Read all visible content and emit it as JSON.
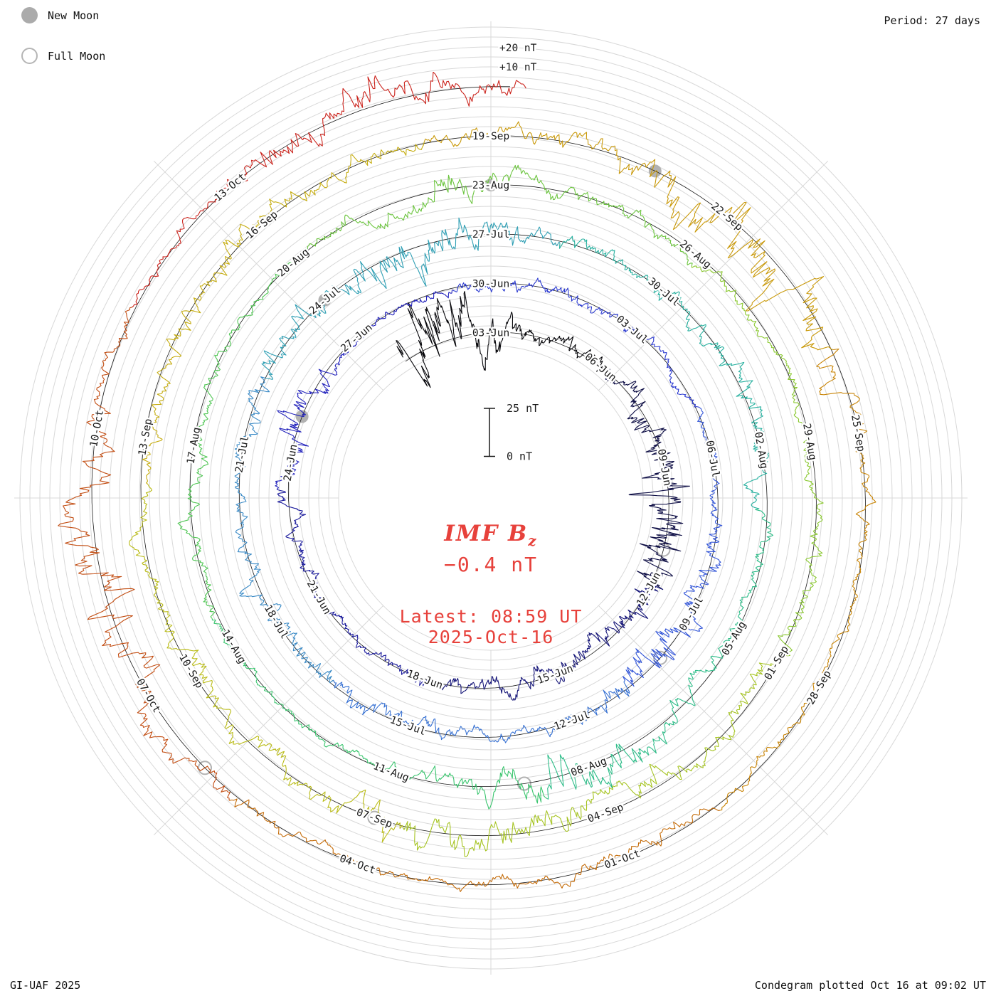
{
  "header": {
    "period": "Period: 27 days"
  },
  "legend": {
    "new_moon": "New Moon",
    "full_moon": "Full Moon"
  },
  "footer": {
    "left": "GI-UAF 2025",
    "right": "Condegram plotted Oct 16 at 09:02 UT"
  },
  "center": {
    "title_main": "IMF B",
    "title_sub": "z",
    "value": "−0.4 nT",
    "latest_time": "Latest: 08:59 UT",
    "latest_date": "2025-Oct-16",
    "accent_color": "#e7413b"
  },
  "chart_data": {
    "type": "spiral-line-condegram",
    "series_label": "IMF Bz (nT)",
    "period_days": 27,
    "day_zero": "2025-05-31",
    "latest": {
      "value_nT": -0.4,
      "time": "08:59 UT",
      "date": "2025-Oct-16"
    },
    "scale": {
      "scalebar_nT": 25,
      "scalebar_top_label": "25 nT",
      "scalebar_zero_label": "0 nT",
      "outer_labels": [
        "+20 nT",
        "+10 nT"
      ],
      "gridline_step_nT": 5
    },
    "date_labels": [
      {
        "label": "03-Jun",
        "day": 3
      },
      {
        "label": "06-Jun",
        "day": 6
      },
      {
        "label": "09-Jun",
        "day": 9
      },
      {
        "label": "12-Jun",
        "day": 12
      },
      {
        "label": "15-Jun",
        "day": 15
      },
      {
        "label": "18-Jun",
        "day": 18
      },
      {
        "label": "21-Jun",
        "day": 21
      },
      {
        "label": "24-Jun",
        "day": 24
      },
      {
        "label": "27-Jun",
        "day": 27
      },
      {
        "label": "30-Jun",
        "day": 30
      },
      {
        "label": "03-Jul",
        "day": 33
      },
      {
        "label": "06-Jul",
        "day": 36
      },
      {
        "label": "09-Jul",
        "day": 39
      },
      {
        "label": "12-Jul",
        "day": 42
      },
      {
        "label": "15-Jul",
        "day": 45
      },
      {
        "label": "18-Jul",
        "day": 48
      },
      {
        "label": "21-Jul",
        "day": 51
      },
      {
        "label": "24-Jul",
        "day": 54
      },
      {
        "label": "27-Jul",
        "day": 57
      },
      {
        "label": "30-Jul",
        "day": 60
      },
      {
        "label": "02-Aug",
        "day": 63
      },
      {
        "label": "05-Aug",
        "day": 66
      },
      {
        "label": "08-Aug",
        "day": 69
      },
      {
        "label": "11-Aug",
        "day": 72
      },
      {
        "label": "14-Aug",
        "day": 75
      },
      {
        "label": "17-Aug",
        "day": 78
      },
      {
        "label": "20-Aug",
        "day": 81
      },
      {
        "label": "23-Aug",
        "day": 84
      },
      {
        "label": "26-Aug",
        "day": 87
      },
      {
        "label": "29-Aug",
        "day": 90
      },
      {
        "label": "01-Sep",
        "day": 93
      },
      {
        "label": "04-Sep",
        "day": 96
      },
      {
        "label": "07-Sep",
        "day": 99
      },
      {
        "label": "10-Sep",
        "day": 102
      },
      {
        "label": "13-Sep",
        "day": 105
      },
      {
        "label": "16-Sep",
        "day": 108
      },
      {
        "label": "19-Sep",
        "day": 111
      },
      {
        "label": "22-Sep",
        "day": 114
      },
      {
        "label": "25-Sep",
        "day": 117
      },
      {
        "label": "28-Sep",
        "day": 120
      },
      {
        "label": "01-Oct",
        "day": 123
      },
      {
        "label": "04-Oct",
        "day": 126
      },
      {
        "label": "07-Oct",
        "day": 129
      },
      {
        "label": "10-Oct",
        "day": 132
      },
      {
        "label": "13-Oct",
        "day": 135
      }
    ],
    "moons": {
      "new_moons": [
        {
          "date": "25-Jun",
          "day": 25
        },
        {
          "date": "24-Jul",
          "day": 54
        },
        {
          "date": "23-Aug",
          "day": 84
        },
        {
          "date": "21-Sep",
          "day": 113
        }
      ],
      "full_moons": [
        {
          "date": "11-Jun",
          "day": 11
        },
        {
          "date": "10-Jul",
          "day": 40
        },
        {
          "date": "09-Aug",
          "day": 70
        },
        {
          "date": "07-Sep",
          "day": 99
        },
        {
          "date": "06-Oct",
          "day": 128
        }
      ]
    },
    "palette": [
      "#050509",
      "#0e0e45",
      "#151578",
      "#1b1b9c",
      "#2323bc",
      "#2c3bd0",
      "#3356d8",
      "#3872d3",
      "#3a8ac6",
      "#2f9fb4",
      "#27b09f",
      "#2dbc88",
      "#3ac56e",
      "#50c654",
      "#6cc53f",
      "#8ac830",
      "#a6c423",
      "#babc19",
      "#c5ac10",
      "#c9990a",
      "#c88406",
      "#c46b08",
      "#c24d12",
      "#cb241d"
    ]
  }
}
